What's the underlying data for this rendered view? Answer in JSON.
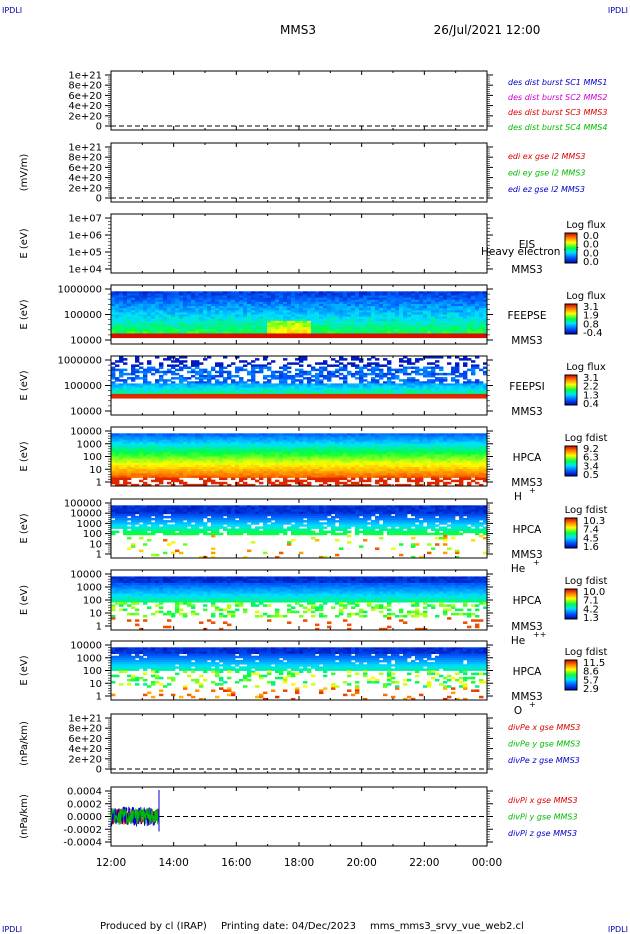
{
  "header": {
    "corner_label": "IPDLI",
    "title": "MMS3",
    "datetime": "26/Jul/2021 12:00"
  },
  "footer": {
    "produced_by": "Produced by cl (IRAP)",
    "printing_date": "Printing date: 04/Dec/2023",
    "script_name": "mms_mms3_srvy_vue_web2.cl"
  },
  "time_axis": {
    "ticks": [
      "12:00",
      "14:00",
      "16:00",
      "18:00",
      "20:00",
      "22:00",
      "00:00"
    ],
    "range_hours": [
      12,
      24
    ]
  },
  "colors": {
    "series_blue": "#0000cc",
    "series_magenta": "#cc00cc",
    "series_red": "#dd0000",
    "series_green": "#00bb00"
  },
  "chart_data": [
    {
      "type": "line",
      "ylabel": "",
      "yticks": [
        "1e+21",
        "8e+20",
        "6e+20",
        "4e+20",
        "2e+20",
        "0"
      ],
      "ylim": [
        0,
        1e+21
      ],
      "dashed_zero": true,
      "legend": [
        {
          "label": "des dist burst SC1 MMS1",
          "color": "#0000cc"
        },
        {
          "label": "des dist burst SC2 MMS2",
          "color": "#cc00cc"
        },
        {
          "label": "des dist burst SC3 MMS3",
          "color": "#dd0000"
        },
        {
          "label": "des dist burst SC4 MMS4",
          "color": "#00bb00"
        }
      ]
    },
    {
      "type": "line",
      "ylabel": "(mV/m)",
      "yticks": [
        "1e+21",
        "8e+20",
        "6e+20",
        "4e+20",
        "2e+20",
        "0"
      ],
      "ylim": [
        0,
        1e+21
      ],
      "dashed_zero": true,
      "legend": [
        {
          "label": "edi ex gse l2 MMS3",
          "color": "#dd0000"
        },
        {
          "label": "edi ey gse l2 MMS3",
          "color": "#00bb00"
        },
        {
          "label": "edi ez gse l2 MMS3",
          "color": "#0000cc"
        }
      ]
    },
    {
      "type": "heatmap",
      "ylabel": "E (eV)",
      "yticks": [
        "1e+07",
        "1e+06",
        "1e+05",
        "1e+04"
      ],
      "ylim": [
        10000,
        10000000
      ],
      "log_y": true,
      "instrument": "EIS",
      "extra_label": "Heavy electron tof",
      "spacecraft": "MMS3",
      "species": "",
      "colorbar_title": "Log flux",
      "colorbar_ticks": [
        "0.0",
        "0.0",
        "0.0",
        "0.0"
      ],
      "style": "empty"
    },
    {
      "type": "heatmap",
      "ylabel": "E (eV)",
      "yticks": [
        "1000000",
        "100000",
        "10000"
      ],
      "ylim": [
        10000,
        1000000
      ],
      "log_y": true,
      "instrument": "FEEPSE",
      "extra_label": "",
      "spacecraft": "MMS3",
      "species": "",
      "colorbar_title": "Log flux",
      "colorbar_ticks": [
        "3.1",
        "1.9",
        "0.8",
        "-0.4"
      ],
      "style": "feepse"
    },
    {
      "type": "heatmap",
      "ylabel": "E (eV)",
      "yticks": [
        "1000000",
        "100000",
        "10000"
      ],
      "ylim": [
        10000,
        1000000
      ],
      "log_y": true,
      "instrument": "FEEPSI",
      "extra_label": "",
      "spacecraft": "MMS3",
      "species": "",
      "colorbar_title": "Log flux",
      "colorbar_ticks": [
        "3.1",
        "2.2",
        "1.3",
        "0.4"
      ],
      "style": "feepsi"
    },
    {
      "type": "heatmap",
      "ylabel": "E (eV)",
      "yticks": [
        "10000",
        "1000",
        "100",
        "10",
        "1"
      ],
      "ylim": [
        1,
        40000
      ],
      "log_y": true,
      "instrument": "HPCA",
      "extra_label": "",
      "spacecraft": "MMS3",
      "species": "H",
      "species_charge": "+",
      "colorbar_title": "Log fdist",
      "colorbar_ticks": [
        "9.2",
        "6.3",
        "3.4",
        "0.5"
      ],
      "style": "hpca_h"
    },
    {
      "type": "heatmap",
      "ylabel": "E (eV)",
      "yticks": [
        "100000",
        "10000",
        "1000",
        "100",
        "10",
        "1"
      ],
      "ylim": [
        1,
        100000
      ],
      "log_y": true,
      "instrument": "HPCA",
      "extra_label": "",
      "spacecraft": "MMS3",
      "species": "He",
      "species_charge": "+",
      "colorbar_title": "Log fdist",
      "colorbar_ticks": [
        "10.3",
        "7.4",
        "4.5",
        "1.6"
      ],
      "style": "hpca_he"
    },
    {
      "type": "heatmap",
      "ylabel": "E (eV)",
      "yticks": [
        "10000",
        "1000",
        "100",
        "10",
        "1"
      ],
      "ylim": [
        1,
        40000
      ],
      "log_y": true,
      "instrument": "HPCA",
      "extra_label": "",
      "spacecraft": "MMS3",
      "species": "He",
      "species_charge": "++",
      "colorbar_title": "Log fdist",
      "colorbar_ticks": [
        "10.0",
        "7.1",
        "4.2",
        "1.3"
      ],
      "style": "hpca_hepp"
    },
    {
      "type": "heatmap",
      "ylabel": "E (eV)",
      "yticks": [
        "10000",
        "1000",
        "100",
        "10",
        "1"
      ],
      "ylim": [
        1,
        40000
      ],
      "log_y": true,
      "instrument": "HPCA",
      "extra_label": "",
      "spacecraft": "MMS3",
      "species": "O",
      "species_charge": "+",
      "colorbar_title": "Log fdist",
      "colorbar_ticks": [
        "11.5",
        "8.6",
        "5.7",
        "2.9"
      ],
      "style": "hpca_o"
    },
    {
      "type": "line",
      "ylabel": "(nPa/km)",
      "yticks": [
        "1e+21",
        "8e+20",
        "6e+20",
        "4e+20",
        "2e+20",
        "0"
      ],
      "ylim": [
        0,
        1e+21
      ],
      "dashed_zero": true,
      "legend": [
        {
          "label": "divPe x gse MMS3",
          "color": "#dd0000"
        },
        {
          "label": "divPe y gse MMS3",
          "color": "#00bb00"
        },
        {
          "label": "divPe z gse MMS3",
          "color": "#0000cc"
        }
      ]
    },
    {
      "type": "line",
      "ylabel": "(nPa/km)",
      "yticks": [
        "0.0004",
        "0.0002",
        "0.0000",
        "-0.0002",
        "-0.0004"
      ],
      "ylim": [
        -0.0005,
        0.0005
      ],
      "dashed_zero": true,
      "data_end_hour": 13.5,
      "legend": [
        {
          "label": "divPi x gse MMS3",
          "color": "#dd0000"
        },
        {
          "label": "divPi y gse MMS3",
          "color": "#00bb00"
        },
        {
          "label": "divPi z gse MMS3",
          "color": "#0000cc"
        }
      ]
    }
  ]
}
